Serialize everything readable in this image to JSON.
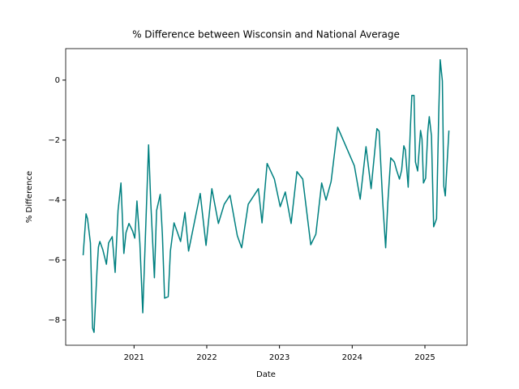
{
  "chart_data": {
    "type": "line",
    "title": "% Difference between Wisconsin and National Average",
    "x_label": "Date",
    "y_label": "% Difference",
    "x": [
      2020.3,
      2020.34,
      2020.36,
      2020.4,
      2020.43,
      2020.45,
      2020.49,
      2020.51,
      2020.53,
      2020.57,
      2020.62,
      2020.65,
      2020.7,
      2020.74,
      2020.78,
      2020.82,
      2020.86,
      2020.89,
      2020.93,
      2020.98,
      2021.01,
      2021.04,
      2021.08,
      2021.12,
      2021.2,
      2021.23,
      2021.28,
      2021.31,
      2021.36,
      2021.39,
      2021.42,
      2021.47,
      2021.5,
      2021.55,
      2021.59,
      2021.64,
      2021.7,
      2021.75,
      2021.91,
      2021.99,
      2022.07,
      2022.16,
      2022.24,
      2022.32,
      2022.42,
      2022.48,
      2022.57,
      2022.71,
      2022.76,
      2022.83,
      2022.93,
      2023.01,
      2023.08,
      2023.16,
      2023.24,
      2023.32,
      2023.43,
      2023.5,
      2023.58,
      2023.64,
      2023.71,
      2023.8,
      2024.03,
      2024.11,
      2024.19,
      2024.26,
      2024.34,
      2024.37,
      2024.42,
      2024.46,
      2024.49,
      2024.53,
      2024.58,
      2024.61,
      2024.65,
      2024.68,
      2024.71,
      2024.73,
      2024.77,
      2024.8,
      2024.82,
      2024.85,
      2024.87,
      2024.9,
      2024.94,
      2024.96,
      2024.98,
      2025.01,
      2025.04,
      2025.06,
      2025.09,
      2025.12,
      2025.16,
      2025.19,
      2025.21,
      2025.24,
      2025.26,
      2025.28,
      2025.33
    ],
    "series": [
      {
        "color": "#008080",
        "values": [
          -5.84,
          -4.46,
          -4.62,
          -5.43,
          -8.27,
          -8.41,
          -6.38,
          -5.57,
          -5.38,
          -5.65,
          -6.14,
          -5.43,
          -5.22,
          -6.41,
          -4.35,
          -3.43,
          -5.78,
          -5.08,
          -4.78,
          -5.03,
          -5.27,
          -4.03,
          -5.43,
          -7.76,
          -2.16,
          -4.08,
          -6.59,
          -4.35,
          -3.81,
          -5.16,
          -7.27,
          -7.22,
          -5.7,
          -4.76,
          -5.03,
          -5.38,
          -4.41,
          -5.7,
          -3.78,
          -5.51,
          -3.62,
          -4.78,
          -4.14,
          -3.84,
          -5.19,
          -5.59,
          -4.14,
          -3.62,
          -4.76,
          -2.78,
          -3.3,
          -4.22,
          -3.73,
          -4.78,
          -3.05,
          -3.3,
          -5.49,
          -5.14,
          -3.43,
          -4.0,
          -3.38,
          -1.57,
          -2.86,
          -3.97,
          -2.22,
          -3.62,
          -1.62,
          -1.7,
          -4.08,
          -5.59,
          -4.08,
          -2.59,
          -2.73,
          -3.0,
          -3.3,
          -3.0,
          -2.19,
          -2.32,
          -3.57,
          -1.59,
          -0.51,
          -0.51,
          -2.73,
          -3.03,
          -1.68,
          -1.97,
          -3.43,
          -3.27,
          -1.7,
          -1.22,
          -1.86,
          -4.89,
          -4.62,
          -1.11,
          0.68,
          -0.03,
          -3.54,
          -3.86,
          -1.68
        ]
      }
    ],
    "xlim": [
      2020.06,
      2025.58
    ],
    "xticks": [
      2021,
      2022,
      2023,
      2024,
      2025
    ],
    "ylim": [
      -8.84,
      1.05
    ],
    "yticks": [
      {
        "value": -8,
        "label": "−8"
      },
      {
        "value": -6,
        "label": "−6"
      },
      {
        "value": -4,
        "label": "−4"
      },
      {
        "value": -2,
        "label": "−2"
      },
      0
    ],
    "grid": false
  }
}
